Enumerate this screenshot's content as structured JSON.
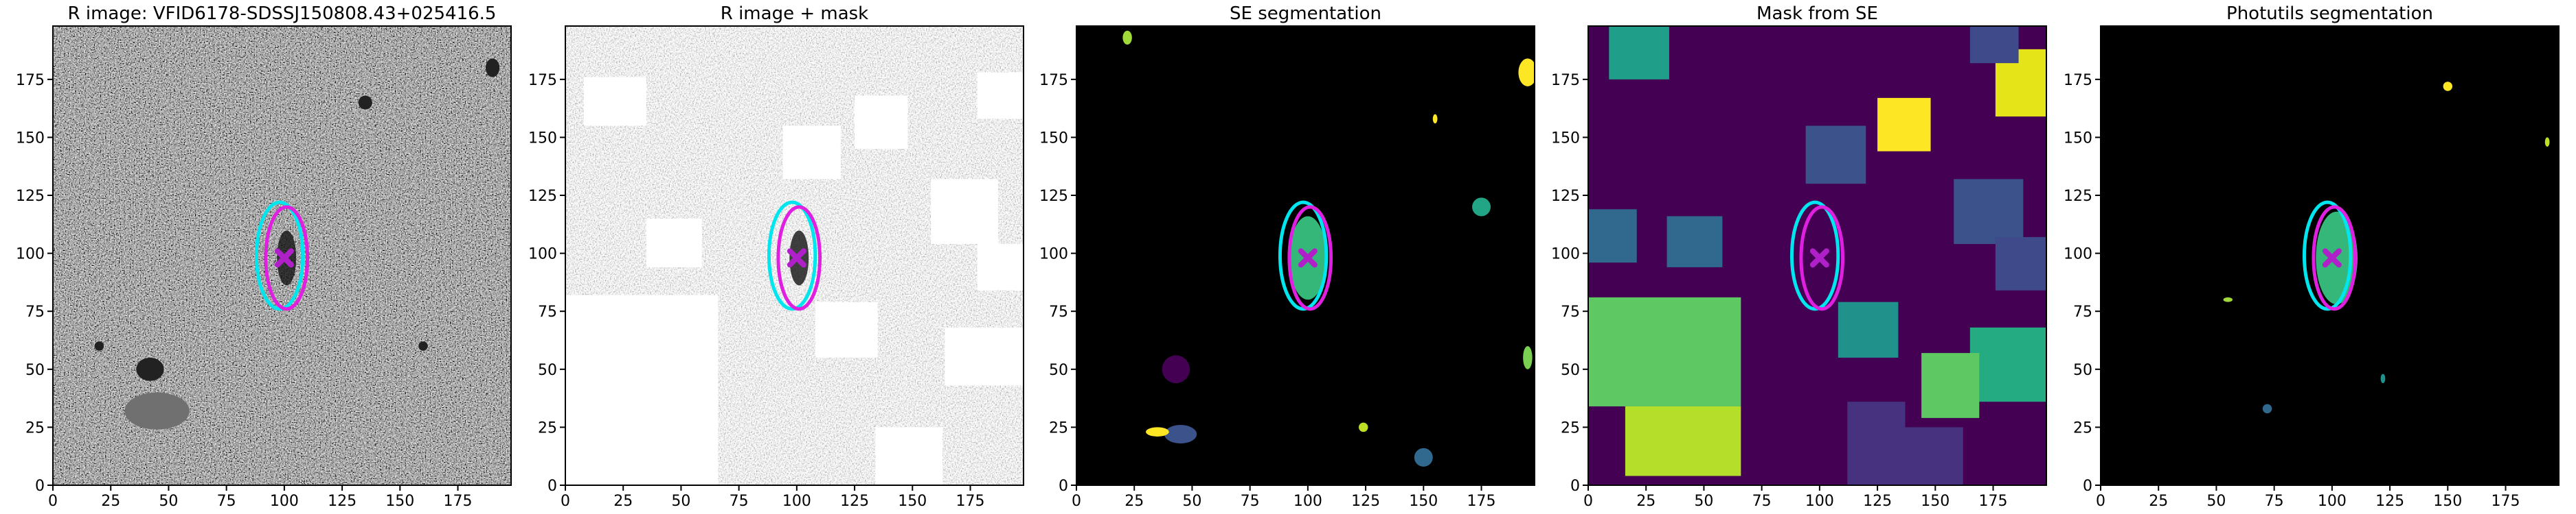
{
  "chart_data": [
    {
      "type": "image",
      "title": "R image: VFID6178-SDSSJ150808.43+025416.5",
      "xlim": [
        0,
        198
      ],
      "ylim": [
        0,
        198
      ],
      "xticks": [
        0,
        25,
        50,
        75,
        100,
        125,
        150,
        175
      ],
      "yticks": [
        0,
        25,
        50,
        75,
        100,
        125,
        150,
        175
      ],
      "ellipses": [
        {
          "x": 98,
          "y": 99,
          "width": 20,
          "height": 46,
          "color": "#00e5ee"
        },
        {
          "x": 101,
          "y": 98,
          "width": 18,
          "height": 44,
          "color": "#e020e0"
        }
      ],
      "marker": {
        "x": 100,
        "y": 98,
        "color": "#b020c8"
      }
    },
    {
      "type": "image",
      "title": "R image + mask",
      "xlim": [
        0,
        198
      ],
      "ylim": [
        0,
        198
      ],
      "xticks": [
        0,
        25,
        50,
        75,
        100,
        125,
        150,
        175
      ],
      "yticks": [
        0,
        25,
        50,
        75,
        100,
        125,
        150,
        175
      ],
      "ellipses": [
        {
          "x": 98,
          "y": 99,
          "width": 20,
          "height": 46,
          "color": "#00e5ee"
        },
        {
          "x": 101,
          "y": 98,
          "width": 18,
          "height": 44,
          "color": "#e020e0"
        }
      ],
      "marker": {
        "x": 100,
        "y": 98,
        "color": "#b020c8"
      }
    },
    {
      "type": "image",
      "title": "SE segmentation",
      "xlim": [
        0,
        198
      ],
      "ylim": [
        0,
        198
      ],
      "xticks": [
        0,
        25,
        50,
        75,
        100,
        125,
        150,
        175
      ],
      "yticks": [
        0,
        25,
        50,
        75,
        100,
        125,
        150,
        175
      ],
      "ellipses": [
        {
          "x": 98,
          "y": 99,
          "width": 20,
          "height": 46,
          "color": "#00e5ee"
        },
        {
          "x": 101,
          "y": 98,
          "width": 18,
          "height": 44,
          "color": "#e020e0"
        }
      ],
      "marker": {
        "x": 100,
        "y": 98,
        "color": "#b020c8"
      }
    },
    {
      "type": "image",
      "title": "Mask from SE",
      "xlim": [
        0,
        198
      ],
      "ylim": [
        0,
        198
      ],
      "xticks": [
        0,
        25,
        50,
        75,
        100,
        125,
        150,
        175
      ],
      "yticks": [
        0,
        25,
        50,
        75,
        100,
        125,
        150,
        175
      ],
      "ellipses": [
        {
          "x": 98,
          "y": 99,
          "width": 20,
          "height": 46,
          "color": "#00e5ee"
        },
        {
          "x": 101,
          "y": 98,
          "width": 18,
          "height": 44,
          "color": "#e020e0"
        }
      ],
      "marker": {
        "x": 100,
        "y": 98,
        "color": "#b020c8"
      }
    },
    {
      "type": "image",
      "title": "Photutils segmentation",
      "xlim": [
        0,
        198
      ],
      "ylim": [
        0,
        198
      ],
      "xticks": [
        0,
        25,
        50,
        75,
        100,
        125,
        150,
        175
      ],
      "yticks": [
        0,
        25,
        50,
        75,
        100,
        125,
        150,
        175
      ],
      "ellipses": [
        {
          "x": 98,
          "y": 99,
          "width": 20,
          "height": 46,
          "color": "#00e5ee"
        },
        {
          "x": 101,
          "y": 98,
          "width": 18,
          "height": 44,
          "color": "#e020e0"
        }
      ],
      "marker": {
        "x": 100,
        "y": 98,
        "color": "#b020c8"
      }
    }
  ]
}
